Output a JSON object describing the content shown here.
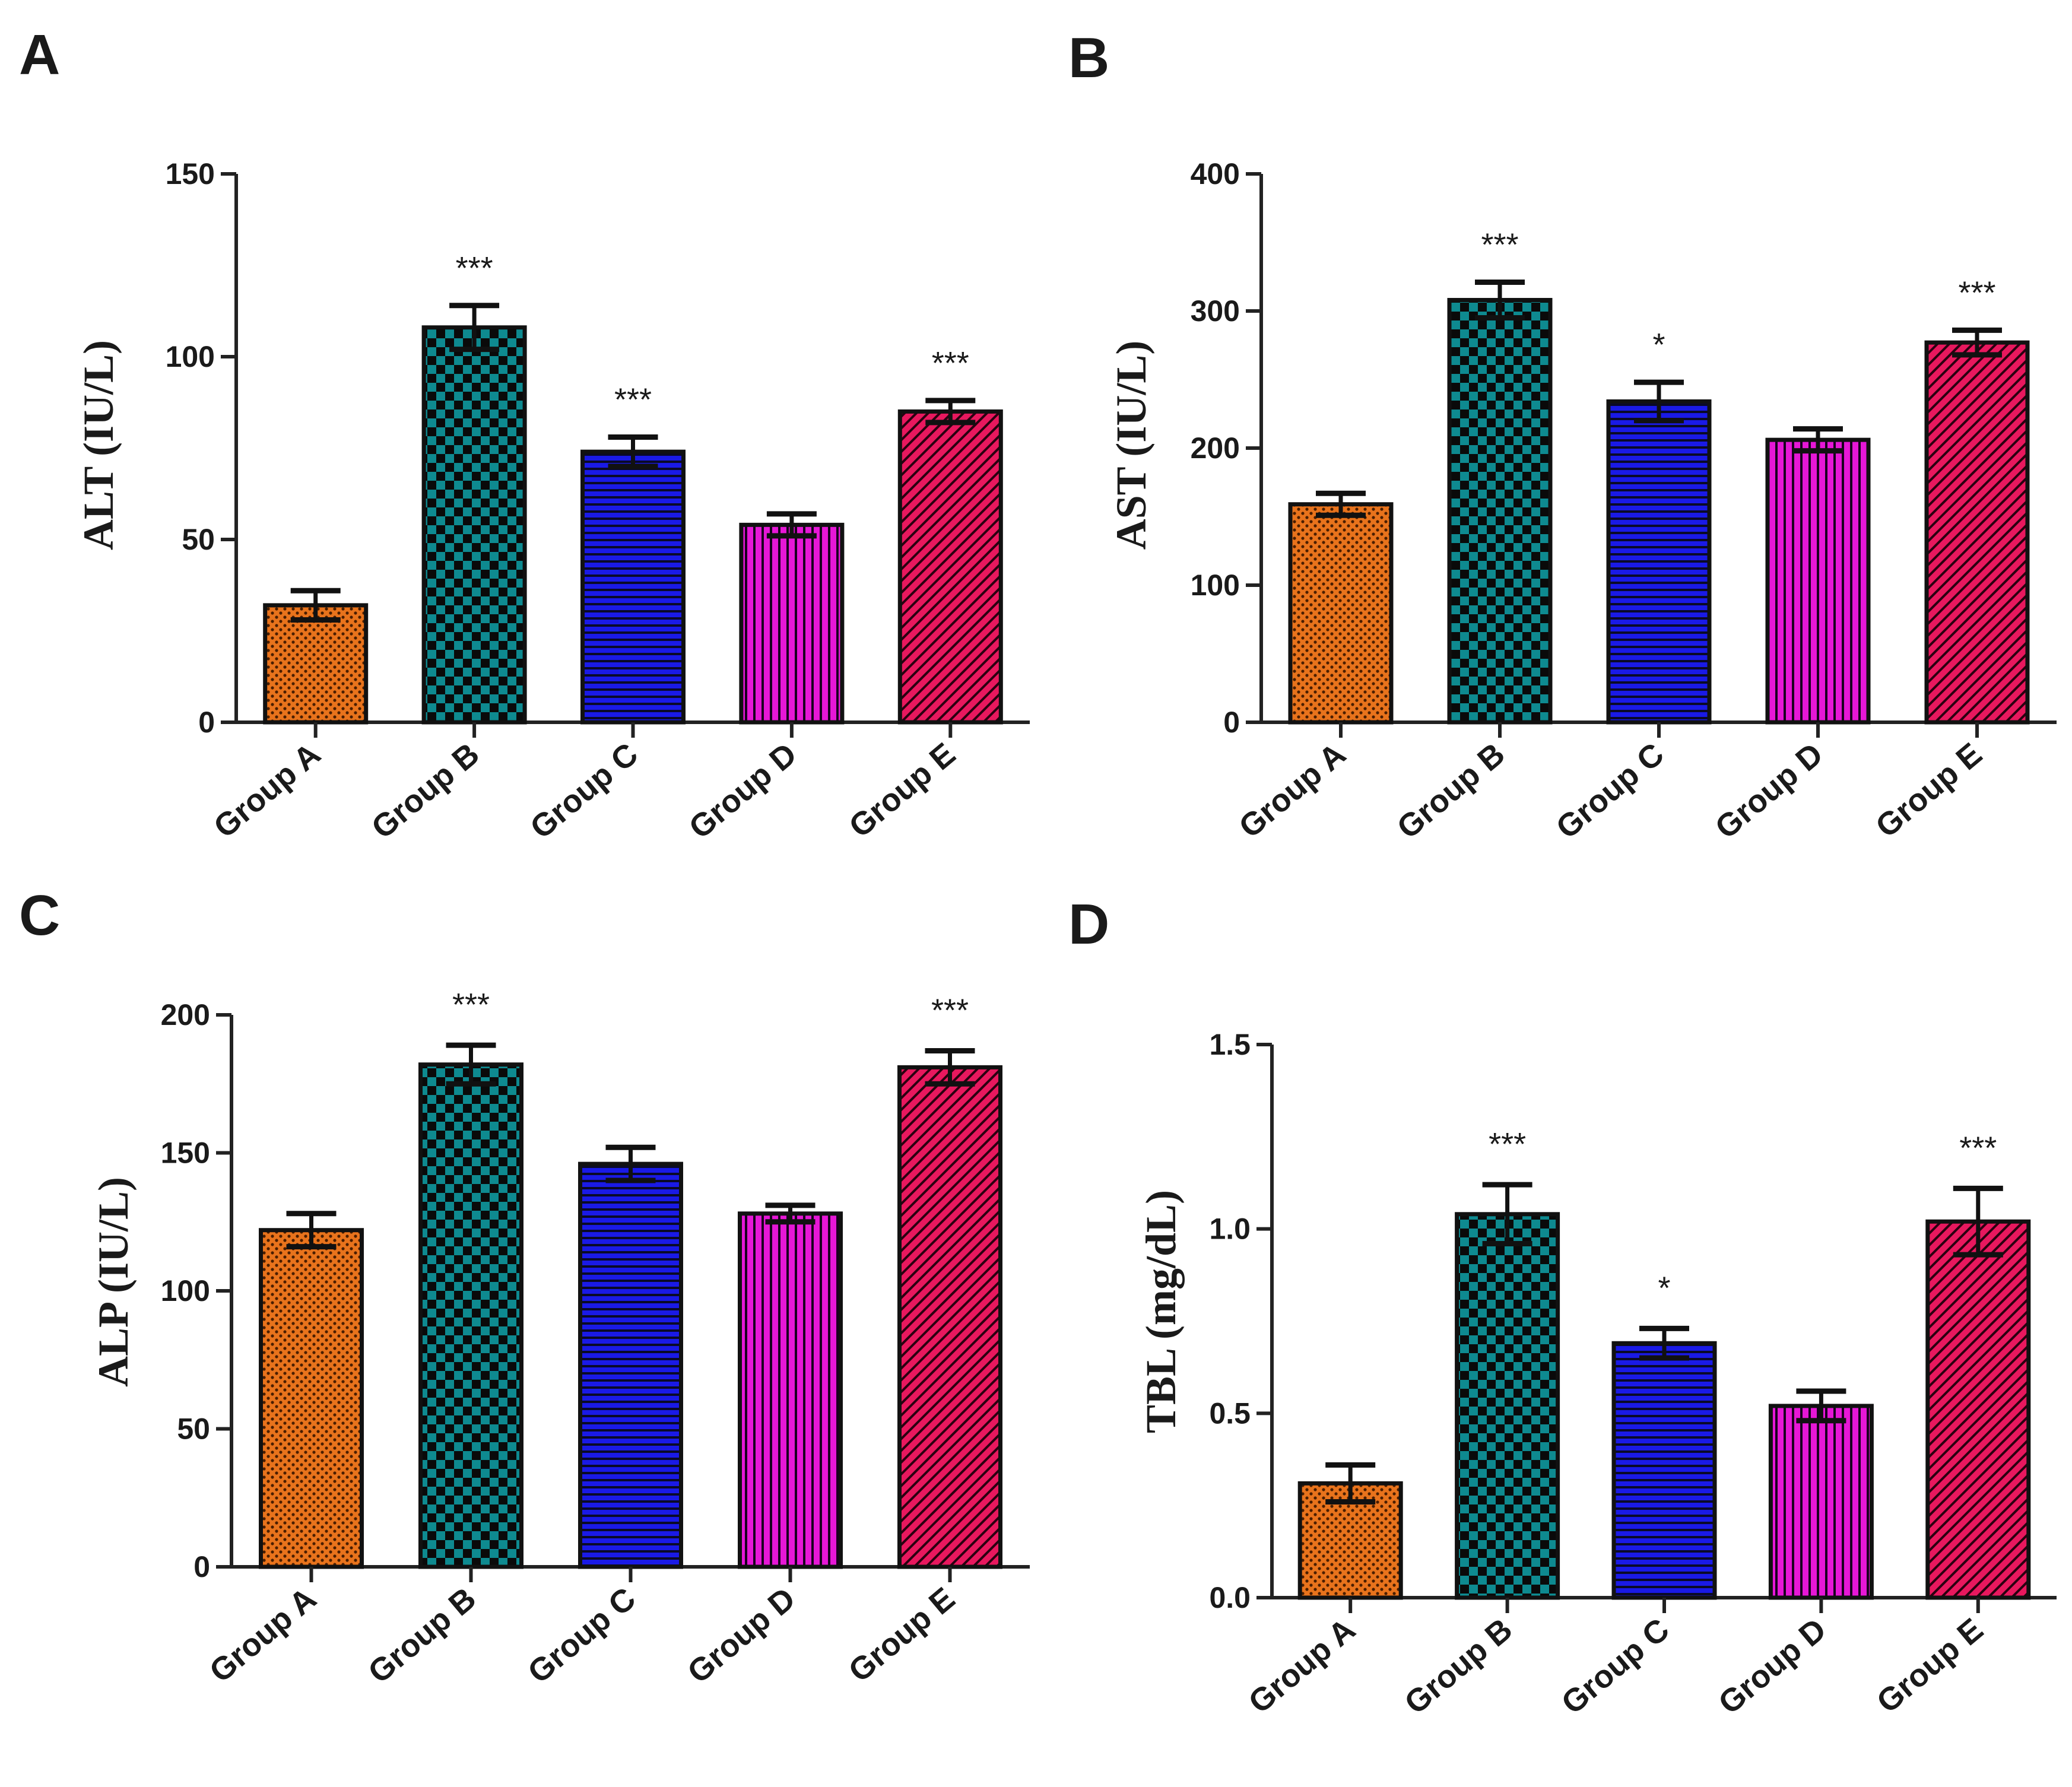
{
  "chart_data": [
    {
      "panel": "A",
      "type": "bar",
      "categories": [
        "Group A",
        "Group B",
        "Group C",
        "Group D",
        "Group E"
      ],
      "values": [
        32,
        108,
        74,
        54,
        85
      ],
      "errors": [
        4,
        6,
        4,
        3,
        3
      ],
      "significance": [
        "",
        "***",
        "***",
        "",
        "***"
      ],
      "ylabel": "ALT (IU/L)",
      "ylim": [
        0,
        150
      ],
      "yticks": [
        0,
        50,
        100,
        150
      ],
      "ytick_labels": [
        "0",
        "50",
        "100",
        "150"
      ]
    },
    {
      "panel": "B",
      "type": "bar",
      "categories": [
        "Group A",
        "Group B",
        "Group C",
        "Group D",
        "Group E"
      ],
      "values": [
        159,
        308,
        234,
        206,
        277
      ],
      "errors": [
        8,
        13,
        14,
        8,
        9
      ],
      "significance": [
        "",
        "***",
        "*",
        "",
        "***"
      ],
      "ylabel": "AST (IU/L)",
      "ylim": [
        0,
        400
      ],
      "yticks": [
        0,
        100,
        200,
        300,
        400
      ],
      "ytick_labels": [
        "0",
        "100",
        "200",
        "300",
        "400"
      ]
    },
    {
      "panel": "C",
      "type": "bar",
      "categories": [
        "Group A",
        "Group B",
        "Group C",
        "Group D",
        "Group E"
      ],
      "values": [
        122,
        182,
        146,
        128,
        181
      ],
      "errors": [
        6,
        7,
        6,
        3,
        6
      ],
      "significance": [
        "",
        "***",
        "",
        "",
        "***"
      ],
      "ylabel": "ALP (IU/L)",
      "ylim": [
        0,
        200
      ],
      "yticks": [
        0,
        50,
        100,
        150,
        200
      ],
      "ytick_labels": [
        "0",
        "50",
        "100",
        "150",
        "200"
      ]
    },
    {
      "panel": "D",
      "type": "bar",
      "categories": [
        "Group A",
        "Group B",
        "Group C",
        "Group D",
        "Group E"
      ],
      "values": [
        0.31,
        1.04,
        0.69,
        0.52,
        1.02
      ],
      "errors": [
        0.05,
        0.08,
        0.04,
        0.04,
        0.09
      ],
      "significance": [
        "",
        "***",
        "*",
        "",
        "***"
      ],
      "ylabel": "TBL (mg/dL)",
      "ylim": [
        0,
        1.5
      ],
      "yticks": [
        0,
        0.5,
        1.0,
        1.5
      ],
      "ytick_labels": [
        "0.0",
        "0.5",
        "1.0",
        "1.5"
      ]
    }
  ],
  "series_style": [
    {
      "fill": "#e8731c",
      "pattern": "dots"
    },
    {
      "fill": "#0e8a90",
      "pattern": "checker"
    },
    {
      "fill": "#1a1ae6",
      "pattern": "horizontal-lines"
    },
    {
      "fill": "#e617d6",
      "pattern": "vertical-lines"
    },
    {
      "fill": "#e8185e",
      "pattern": "diagonal-hatch"
    }
  ]
}
